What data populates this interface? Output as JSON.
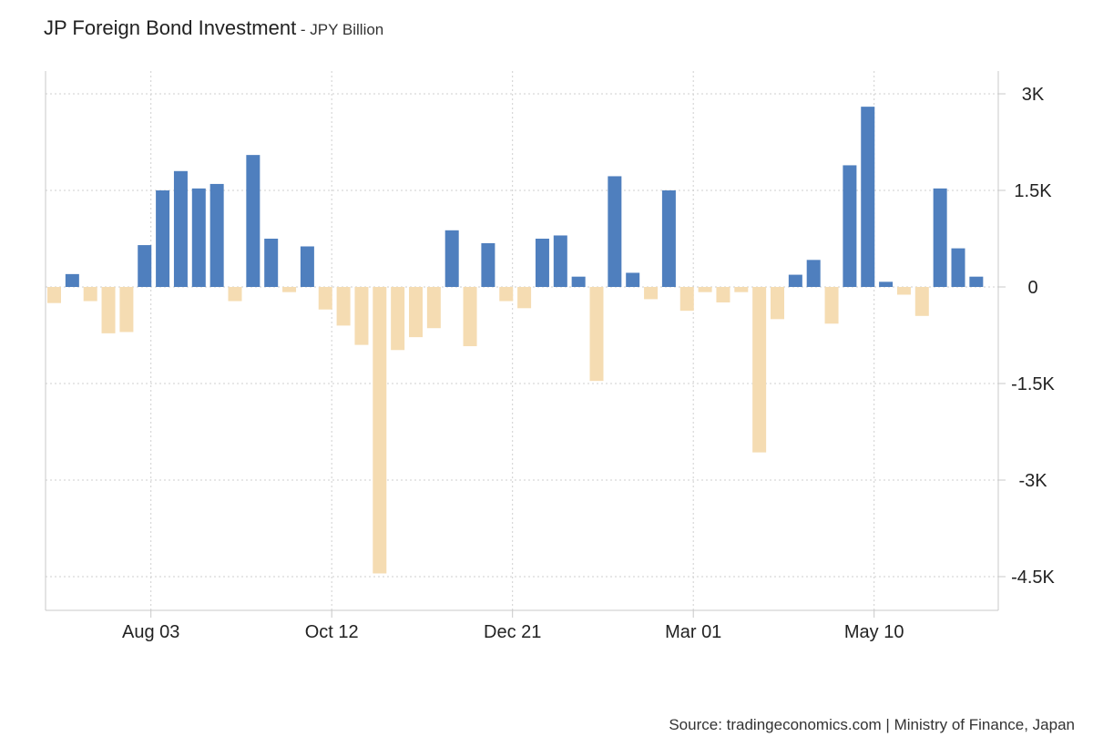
{
  "header": {
    "title": "JP Foreign Bond Investment",
    "subtitle": " - JPY Billion"
  },
  "footer": {
    "source": "Source: tradingeconomics.com | Ministry of Finance, Japan"
  },
  "colors": {
    "positive": "#4f7fbe",
    "negative": "#f5dcb2",
    "grid": "#cfcfcf",
    "axis": "#c8c8c8"
  },
  "chart_data": {
    "type": "bar",
    "ylim": [
      -5000,
      3300
    ],
    "y_ticks": [
      {
        "value": 3000,
        "label": "3K"
      },
      {
        "value": 1500,
        "label": "1.5K"
      },
      {
        "value": 0,
        "label": "0"
      },
      {
        "value": -1500,
        "label": "-1.5K"
      },
      {
        "value": -3000,
        "label": "-3K"
      },
      {
        "value": -4500,
        "label": "-4.5K"
      }
    ],
    "x_ticks": [
      {
        "index": 5.35,
        "label": "Aug 03"
      },
      {
        "index": 15.35,
        "label": "Oct 12"
      },
      {
        "index": 25.35,
        "label": "Dec 21"
      },
      {
        "index": 35.35,
        "label": "Mar 01"
      },
      {
        "index": 45.35,
        "label": "May 10"
      }
    ],
    "grid": true,
    "legend": "none",
    "values": [
      -250,
      200,
      -220,
      -720,
      -700,
      650,
      1500,
      1800,
      1530,
      1600,
      -220,
      2050,
      750,
      -80,
      630,
      -350,
      -600,
      -900,
      -4450,
      -980,
      -780,
      -640,
      880,
      -920,
      680,
      -220,
      -330,
      750,
      800,
      160,
      -1460,
      1720,
      220,
      -190,
      1500,
      -370,
      -80,
      -240,
      -80,
      -2570,
      -500,
      190,
      420,
      -570,
      1890,
      2800,
      80,
      -120,
      -450,
      1530,
      600,
      160
    ]
  }
}
